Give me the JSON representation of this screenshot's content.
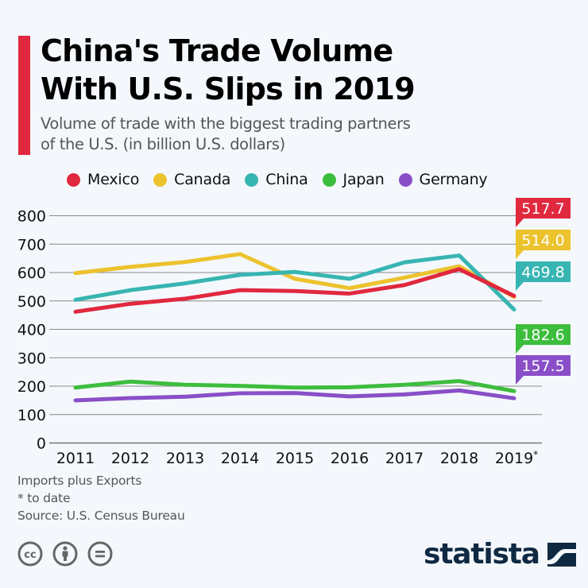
{
  "header": {
    "title_line1": "China's Trade Volume",
    "title_line2": "With U.S. Slips in 2019",
    "subtitle_line1": "Volume of trade with the biggest trading partners",
    "subtitle_line2": "of the U.S. (in billion U.S. dollars)",
    "accent_color": "#e0283e"
  },
  "legend": [
    {
      "label": "Mexico",
      "color": "#e0283e"
    },
    {
      "label": "Canada",
      "color": "#ecc22d"
    },
    {
      "label": "China",
      "color": "#37b5b2"
    },
    {
      "label": "Japan",
      "color": "#3dbd3d"
    },
    {
      "label": "Germany",
      "color": "#8a4fc8"
    }
  ],
  "chart_data": {
    "type": "line",
    "title": "China's Trade Volume With U.S. Slips in 2019",
    "subtitle": "Volume of trade with the biggest trading partners of the U.S. (in billion U.S. dollars)",
    "xlabel": "",
    "ylabel": "",
    "categories": [
      "2011",
      "2012",
      "2013",
      "2014",
      "2015",
      "2016",
      "2017",
      "2018",
      "2019*"
    ],
    "ylim": [
      0,
      800
    ],
    "yticks": [
      0,
      100,
      200,
      300,
      400,
      500,
      600,
      700,
      800
    ],
    "grid": true,
    "legend_position": "top",
    "series": [
      {
        "name": "Mexico",
        "color": "#e0283e",
        "values": [
          462,
          490,
          508,
          538,
          535,
          526,
          556,
          612,
          517.7
        ],
        "end_label": "517.7"
      },
      {
        "name": "Canada",
        "color": "#ecc22d",
        "values": [
          598,
          620,
          637,
          665,
          578,
          545,
          582,
          622,
          514.0
        ],
        "end_label": "514.0"
      },
      {
        "name": "China",
        "color": "#37b5b2",
        "values": [
          504,
          538,
          562,
          592,
          602,
          578,
          636,
          660,
          469.8
        ],
        "end_label": "469.8"
      },
      {
        "name": "Japan",
        "color": "#3dbd3d",
        "values": [
          195,
          216,
          205,
          201,
          195,
          196,
          205,
          218,
          182.6
        ],
        "end_label": "182.6"
      },
      {
        "name": "Germany",
        "color": "#8a4fc8",
        "values": [
          150,
          158,
          163,
          175,
          176,
          164,
          171,
          185,
          157.5
        ],
        "end_label": "157.5"
      }
    ]
  },
  "footer": {
    "note1": "Imports plus Exports",
    "note2": "* to date",
    "source": "Source: U.S. Census Bureau"
  },
  "license_icons": [
    "creative-commons-icon",
    "attribution-icon",
    "no-derivatives-icon"
  ],
  "brand": {
    "name": "statista",
    "color": "#0f2942"
  }
}
